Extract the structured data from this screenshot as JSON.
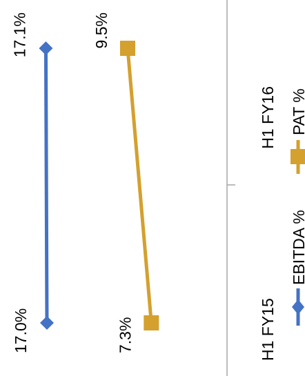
{
  "chart_data": {
    "type": "line",
    "categories": [
      "H1 FY15",
      "H1 FY16"
    ],
    "series": [
      {
        "name": "EBITDA %",
        "values": [
          17.0,
          17.1
        ],
        "labels": [
          "17.0%",
          "17.1%"
        ],
        "color": "#4472C4",
        "marker": "diamond"
      },
      {
        "name": "PAT %",
        "values": [
          7.3,
          9.5
        ],
        "labels": [
          "7.3%",
          "9.5%"
        ],
        "color": "#D4A02E",
        "marker": "square"
      }
    ],
    "orientation": "rotated 90 degrees counter-clockwise",
    "legend_position": "bottom",
    "gridlines": false
  }
}
